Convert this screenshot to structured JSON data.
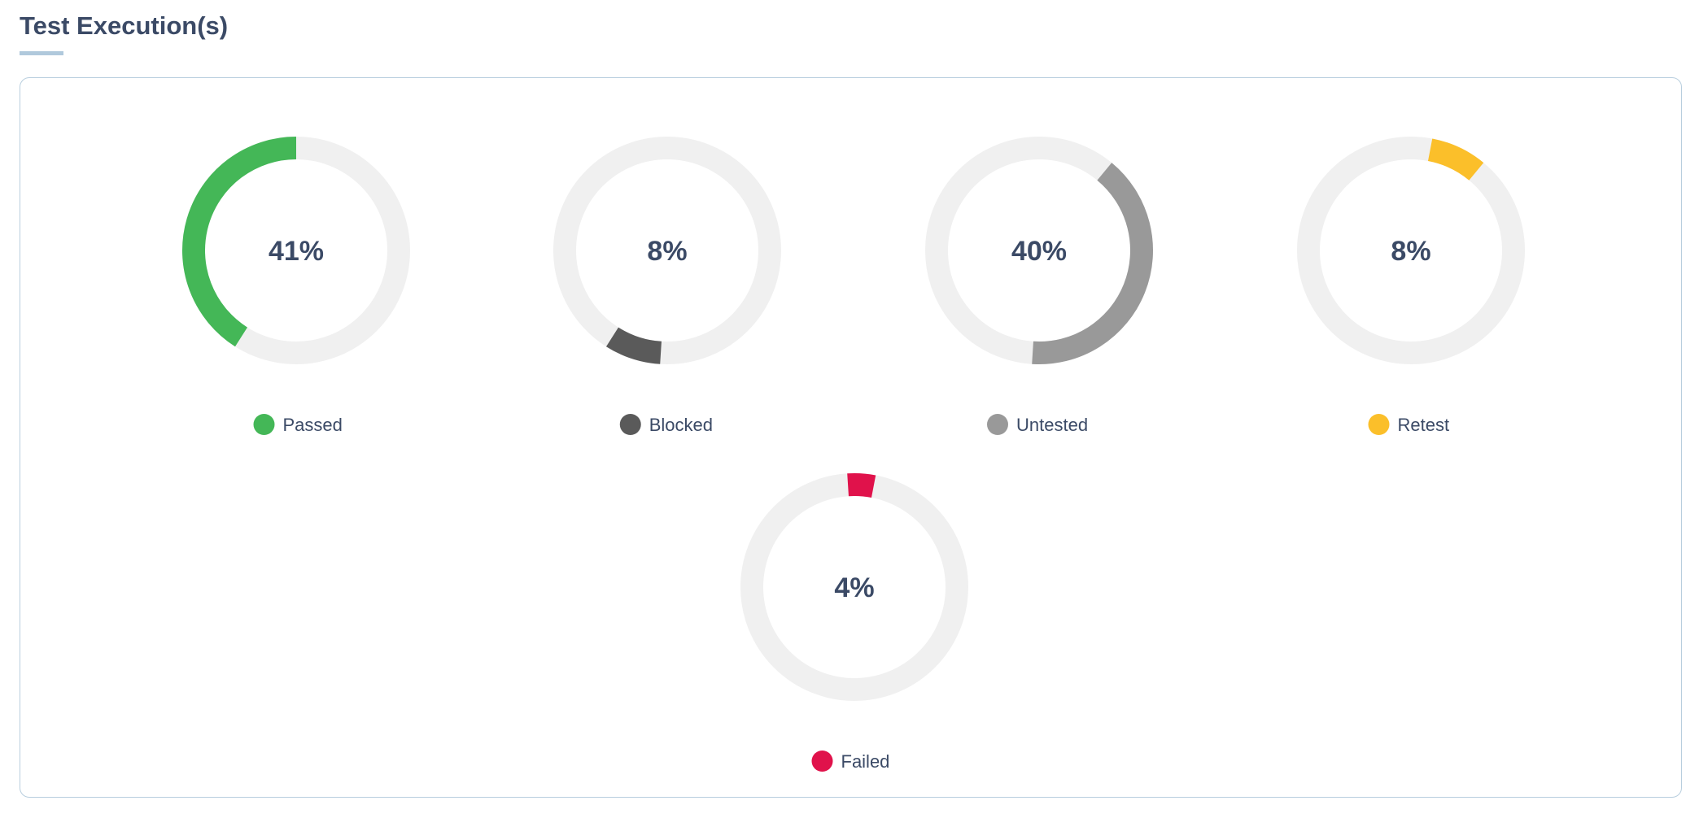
{
  "header": {
    "title": "Test Execution(s)"
  },
  "chart_data": {
    "type": "donut",
    "unit": "%",
    "track_color": "#f0f0f0",
    "series": [
      {
        "name": "Passed",
        "value": 41,
        "label": "41%",
        "color": "#44b757"
      },
      {
        "name": "Blocked",
        "value": 8,
        "label": "8%",
        "color": "#5a5a5a"
      },
      {
        "name": "Untested",
        "value": 40,
        "label": "40%",
        "color": "#999999"
      },
      {
        "name": "Retest",
        "value": 8,
        "label": "8%",
        "color": "#fbbf2a"
      },
      {
        "name": "Failed",
        "value": 4,
        "label": "4%",
        "color": "#e0124b"
      }
    ]
  }
}
